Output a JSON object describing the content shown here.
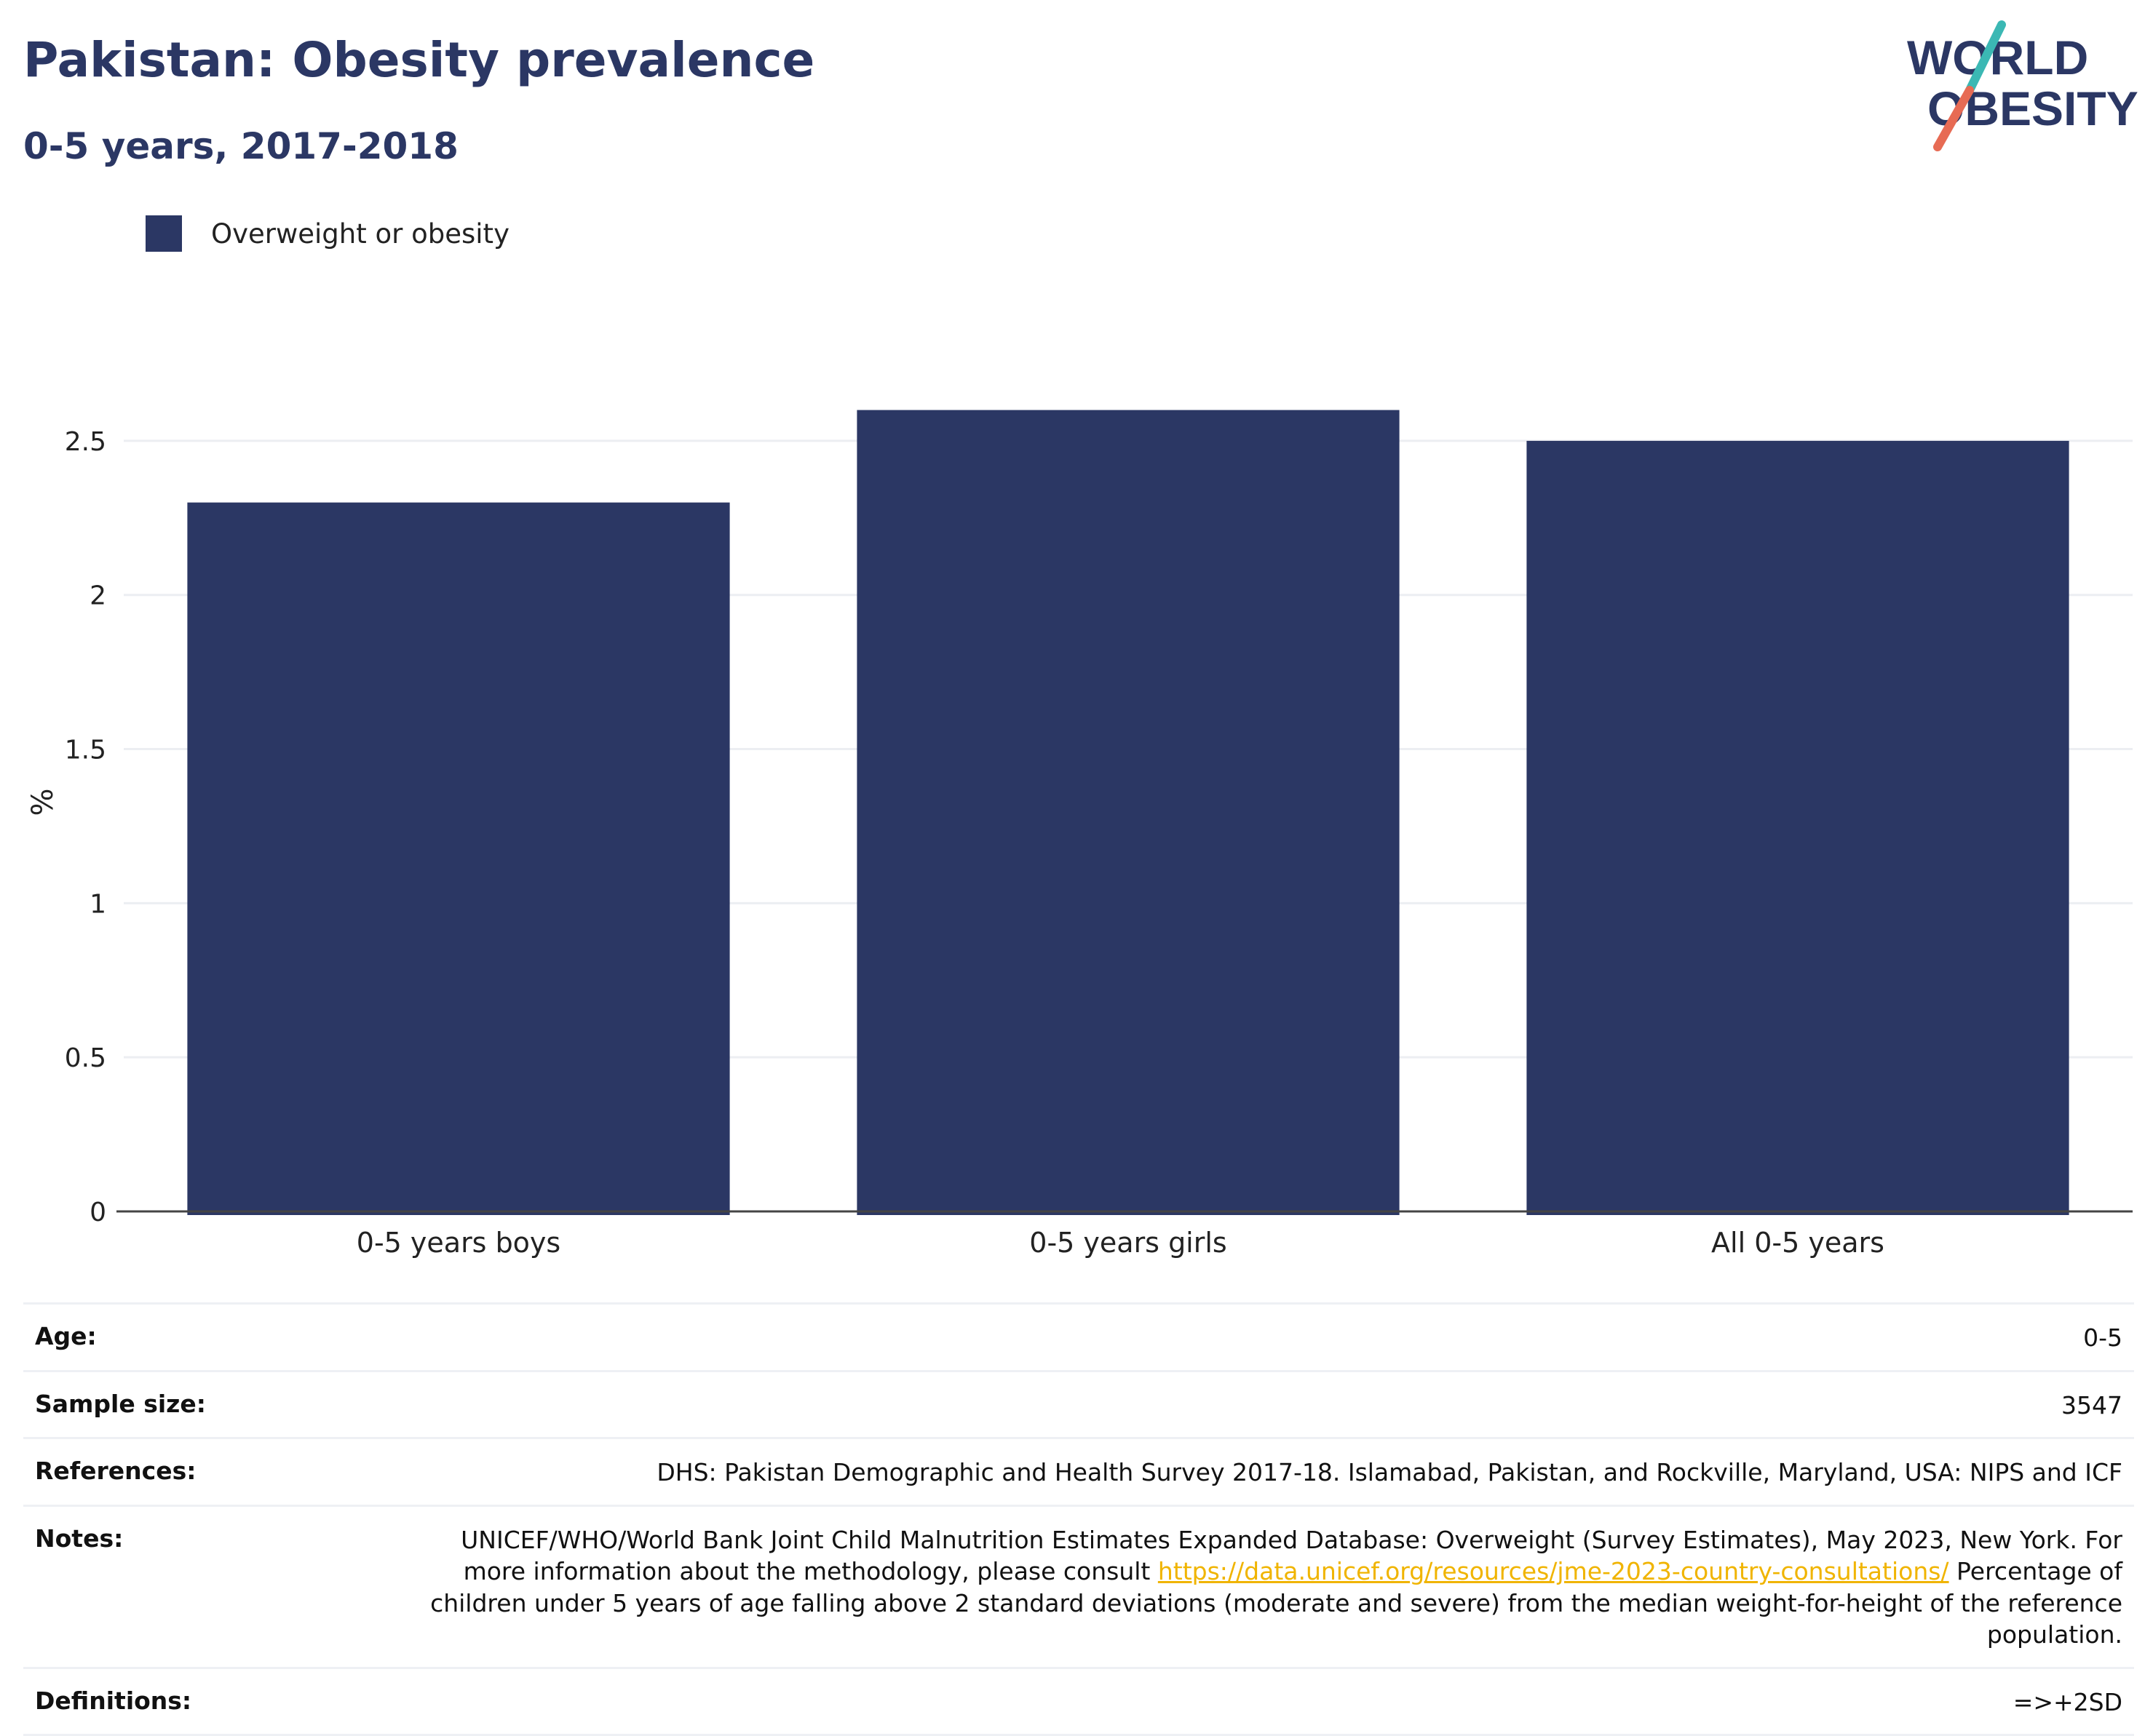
{
  "header": {
    "title": "Pakistan: Obesity prevalence",
    "subtitle": "0-5 years, 2017-2018",
    "logo_line1": "WORLD",
    "logo_line2": "OBESITY"
  },
  "legend": {
    "label": "Overweight or obesity"
  },
  "colors": {
    "bar": "#2b3764",
    "title": "#2b3764",
    "link": "#f0b400",
    "logo_teal": "#3bb8b4",
    "logo_coral": "#e76b54"
  },
  "chart_data": {
    "type": "bar",
    "categories": [
      "0-5 years boys",
      "0-5 years girls",
      "All 0-5 years"
    ],
    "series": [
      {
        "name": "Overweight or obesity",
        "values": [
          2.3,
          2.6,
          2.5
        ]
      }
    ],
    "ylabel": "%",
    "ylim": [
      0,
      2.75
    ],
    "yticks": [
      0,
      0.5,
      1,
      1.5,
      2,
      2.5
    ],
    "ytick_labels": [
      "0",
      "0.5",
      "1",
      "1.5",
      "2",
      "2.5"
    ],
    "grid": true,
    "legend_position": "top-left"
  },
  "meta": {
    "age": {
      "label": "Age:",
      "value": "0-5"
    },
    "sample_size": {
      "label": "Sample size:",
      "value": "3547"
    },
    "references": {
      "label": "References:",
      "value": "DHS: Pakistan Demographic and Health Survey 2017-18. Islamabad, Pakistan, and Rockville, Maryland, USA: NIPS and ICF"
    },
    "notes": {
      "label": "Notes:",
      "text_1": "UNICEF/WHO/World Bank Joint Child Malnutrition Estimates Expanded Database: Overweight (Survey Estimates), May 2023, New York. For more information about the methodology, please consult ",
      "link": "https://data.unicef.org/resources/jme-2023-country-consultations/",
      "text_2": " Percentage of children under 5 years of age falling above 2 standard deviations (moderate and severe) from the median weight-for-height of the reference population."
    },
    "definitions": {
      "label": "Definitions:",
      "value": "=>+2SD"
    }
  }
}
